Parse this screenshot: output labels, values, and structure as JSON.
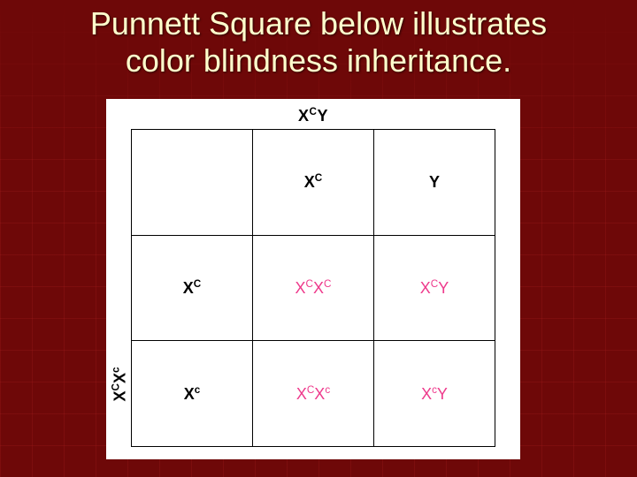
{
  "slide": {
    "title_line1": "Punnett Square below illustrates",
    "title_line2": "color blindness inheritance.",
    "background_color": "#6e0808",
    "grid_color": "#a52a2a",
    "title_color": "#ffffcc",
    "title_fontsize": 36
  },
  "punnett": {
    "type": "table",
    "figure_bg": "#ffffff",
    "border_color": "#000000",
    "male_parent_label_html": "X<sup>C</sup>Y",
    "female_parent_label_html": "X<sup>C</sup>X<sup>c</sup>",
    "columns": [
      {
        "allele_html": "X<sup>C</sup>",
        "color": "#000000"
      },
      {
        "allele_html": "Y",
        "color": "#000000"
      }
    ],
    "rows": [
      {
        "allele_html": "X<sup>C</sup>",
        "allele_color": "#000000",
        "offspring": [
          {
            "genotype_html": "X<sup>C</sup>X<sup>C</sup>",
            "color": "#ee3a8c"
          },
          {
            "genotype_html": "X<sup>C</sup>Y",
            "color": "#ee3a8c"
          }
        ]
      },
      {
        "allele_html": "X<sup>c</sup>",
        "allele_color": "#000000",
        "offspring": [
          {
            "genotype_html": "X<sup>C</sup>X<sup>c</sup>",
            "color": "#ee3a8c"
          },
          {
            "genotype_html": "X<sup>c</sup>Y",
            "color": "#ee3a8c"
          }
        ]
      }
    ],
    "header_fontsize": 18,
    "cell_fontsize": 18,
    "offspring_color": "#ee3a8c",
    "parent_allele_color": "#000000"
  }
}
